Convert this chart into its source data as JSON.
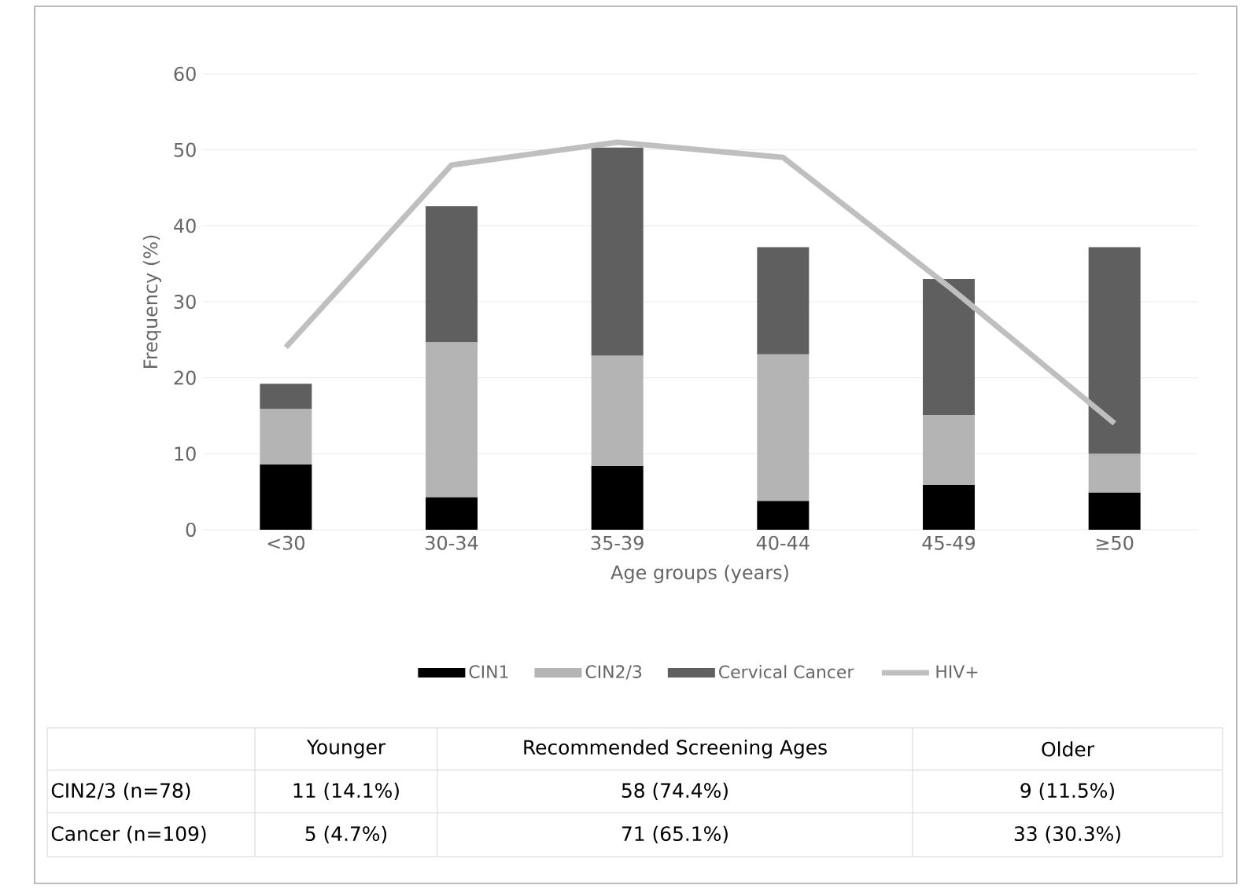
{
  "chart_data": {
    "type": "bar",
    "stacked": true,
    "xlabel": "Age groups (years)",
    "ylabel": "Frequency (%)",
    "categories": [
      "<30",
      "30-34",
      "35-39",
      "40-44",
      "45-49",
      "≥50"
    ],
    "series": [
      {
        "name": "CIN1",
        "color": "#000000",
        "values": [
          8.6,
          4.3,
          8.4,
          3.8,
          5.9,
          4.9
        ]
      },
      {
        "name": "CIN2/3",
        "color": "#b4b4b4",
        "values": [
          7.3,
          20.4,
          14.5,
          19.3,
          9.2,
          5.1
        ]
      },
      {
        "name": "Cervical Cancer",
        "color": "#5f5f5f",
        "values": [
          3.3,
          17.9,
          27.4,
          14.1,
          17.9,
          27.2
        ]
      },
      {
        "name": "HIV+",
        "type": "line",
        "color": "#bfbfbf",
        "values": [
          24,
          48,
          51,
          49,
          32,
          14
        ]
      }
    ],
    "ylim": [
      0,
      60
    ],
    "yticks": [
      0,
      10,
      20,
      30,
      40,
      50,
      60
    ],
    "grid": "y",
    "legend": "bottom",
    "marker": "none",
    "annotations": [
      "Younger",
      "Recommended Screening Ages",
      "Older",
      "CIN2/3 (n=78)",
      "11 (14.1%)",
      "58 (74.4%)",
      "9 (11.5%)",
      "Cancer (n=109)",
      "5 (4.7%)",
      "71 (65.1%)",
      "33 (30.3%)"
    ]
  }
}
